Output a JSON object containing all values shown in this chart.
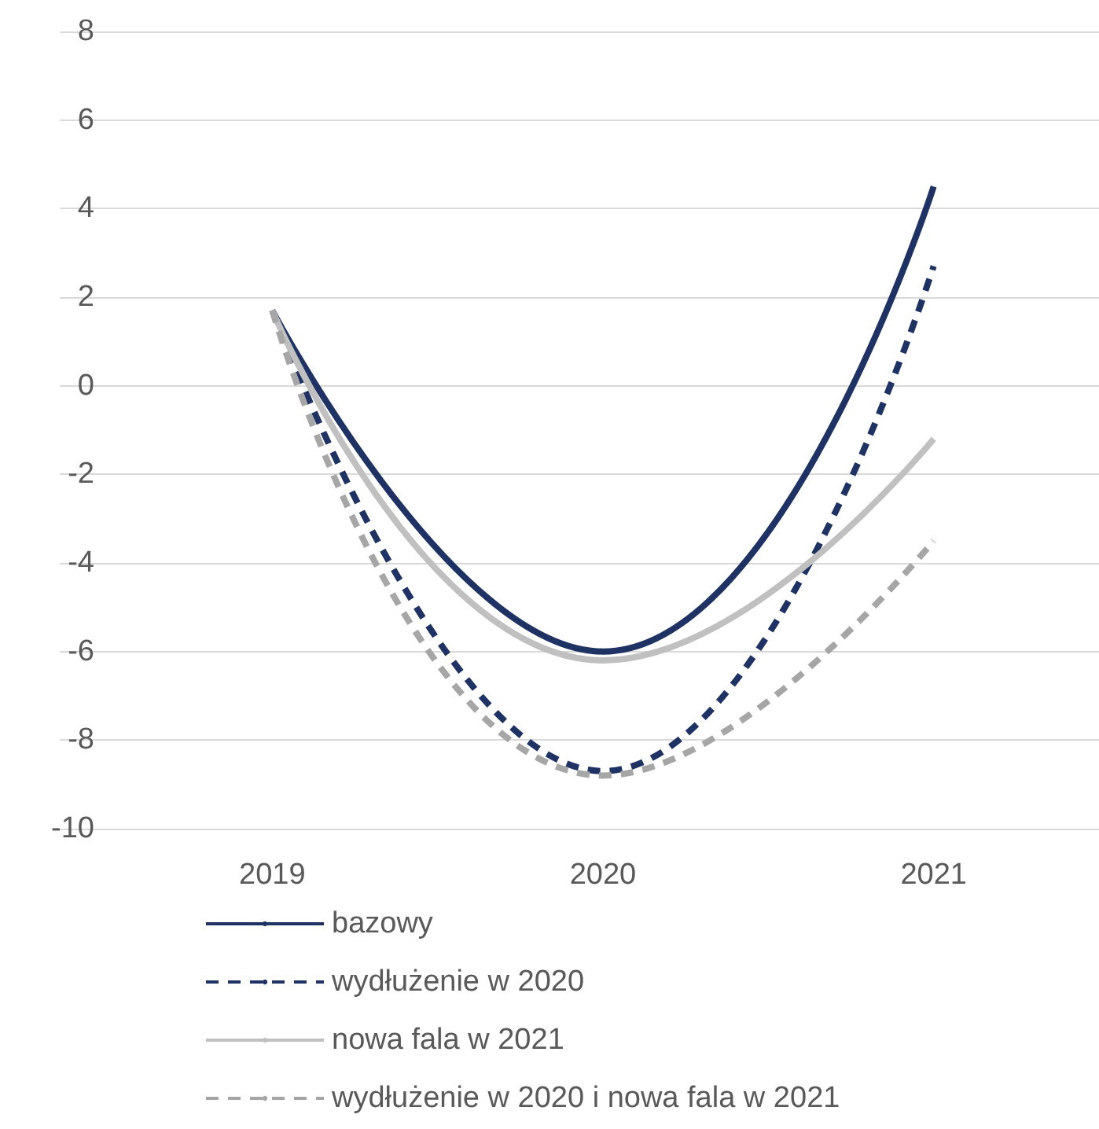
{
  "chart_data": {
    "type": "line",
    "categories": [
      "2019",
      "2020",
      "2021"
    ],
    "series": [
      {
        "name": "bazowy",
        "color": "#1f3264",
        "line_style": "solid",
        "values": [
          1.7,
          -6.0,
          4.5
        ]
      },
      {
        "name": "wydłużenie w 2020",
        "color": "#1f3264",
        "line_style": "dashed",
        "values": [
          1.7,
          -8.7,
          2.7
        ]
      },
      {
        "name": "nowa fala w 2021",
        "color": "#c0c0c0",
        "line_style": "solid",
        "values": [
          1.7,
          -6.2,
          -1.2
        ]
      },
      {
        "name": "wydłużenie w 2020 i nowa fala w 2021",
        "color": "#a6a6a6",
        "line_style": "dashed",
        "values": [
          1.7,
          -8.8,
          -3.5
        ]
      }
    ],
    "ylim": [
      -10,
      8
    ],
    "yticks": [
      -10,
      -8,
      -6,
      -4,
      -2,
      0,
      2,
      4,
      6,
      8
    ],
    "grid": "y",
    "legend": "bottom",
    "marker": "none"
  }
}
